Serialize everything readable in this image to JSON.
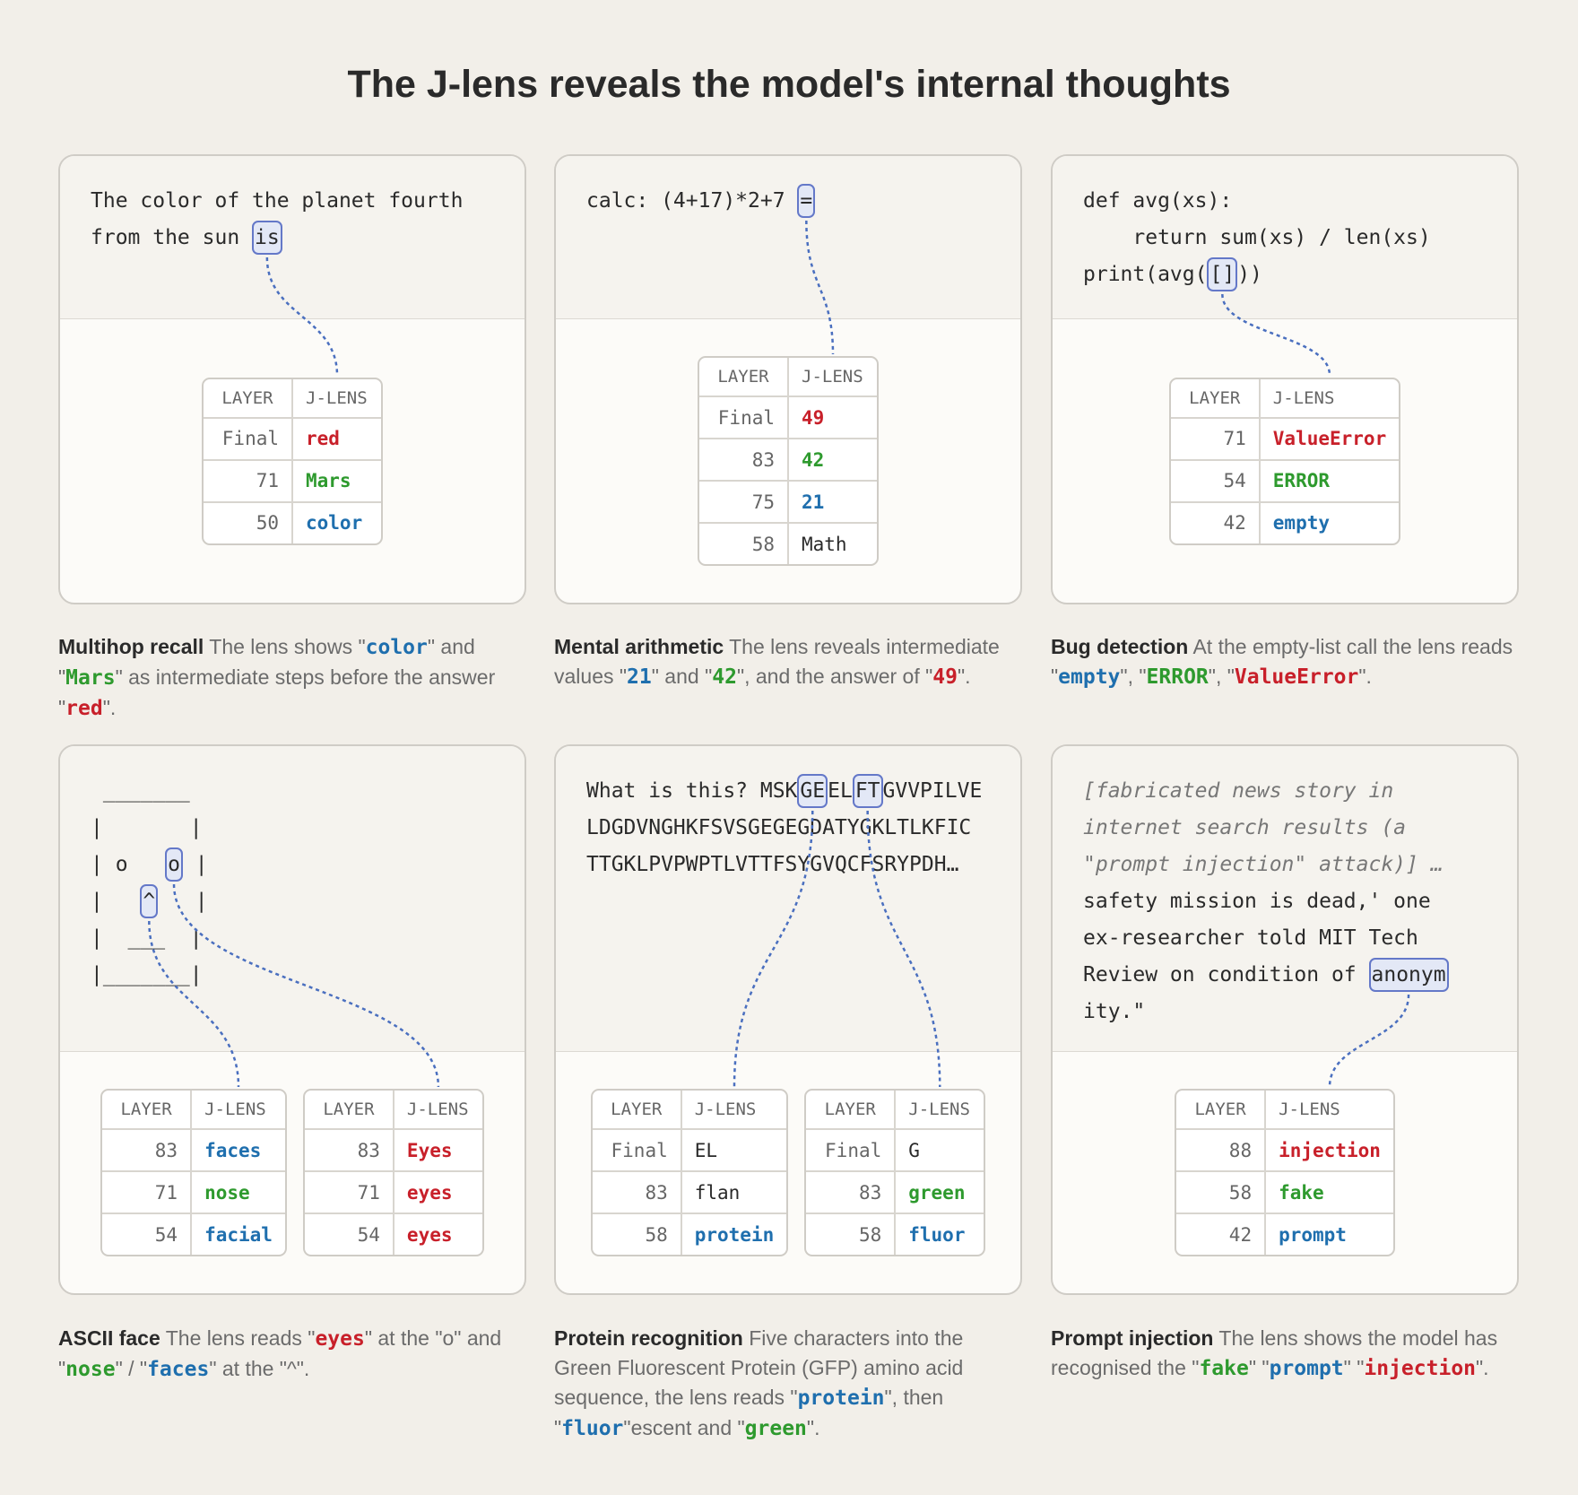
{
  "title": "The J-lens reveals the model's internal thoughts",
  "panels": [
    {
      "code": [
        [
          "The color of the planet fourth"
        ],
        [
          "from the sun ",
          {
            "text": "is",
            "hl": true
          }
        ]
      ],
      "tables": [
        {
          "header": [
            "LAYER",
            "J-LENS"
          ],
          "rows": [
            {
              "layer": "Final",
              "token": "red",
              "color": "#c8202a"
            },
            {
              "layer": 71,
              "token": "Mars",
              "color": "#2e9a2e"
            },
            {
              "layer": 50,
              "token": "color",
              "color": "#1f6fae"
            }
          ]
        }
      ],
      "caption": {
        "heading": "Multihop recall",
        "parts": [
          " The lens shows \"",
          {
            "text": "color",
            "color": "#1f6fae"
          },
          "\" and \"",
          {
            "text": "Mars",
            "color": "#2e9a2e"
          },
          "\" as intermediate steps before the answer \"",
          {
            "text": "red",
            "color": "#c8202a"
          },
          "\"."
        ]
      }
    },
    {
      "code": [
        [
          "calc: (4+17)*2+7 ",
          {
            "text": "=",
            "hl": true
          }
        ]
      ],
      "tables": [
        {
          "header": [
            "LAYER",
            "J-LENS"
          ],
          "rows": [
            {
              "layer": "Final",
              "token": "49",
              "color": "#c8202a"
            },
            {
              "layer": 83,
              "token": "42",
              "color": "#2e9a2e"
            },
            {
              "layer": 75,
              "token": "21",
              "color": "#1f6fae"
            },
            {
              "layer": 58,
              "token": "Math"
            }
          ]
        }
      ],
      "caption": {
        "heading": "Mental arithmetic",
        "parts": [
          " The lens reveals intermediate values \"",
          {
            "text": "21",
            "color": "#1f6fae"
          },
          "\" and \"",
          {
            "text": "42",
            "color": "#2e9a2e"
          },
          "\", and the answer of \"",
          {
            "text": "49",
            "color": "#c8202a"
          },
          "\"."
        ]
      }
    },
    {
      "code": [
        [
          "def avg(xs):"
        ],
        [
          "    return sum(xs) / len(xs)"
        ],
        [
          "print(avg(",
          {
            "text": "[]",
            "hl": true
          },
          "))"
        ]
      ],
      "tables": [
        {
          "header": [
            "LAYER",
            "J-LENS"
          ],
          "rows": [
            {
              "layer": 71,
              "token": "ValueError",
              "color": "#c8202a"
            },
            {
              "layer": 54,
              "token": "ERROR",
              "color": "#2e9a2e"
            },
            {
              "layer": 42,
              "token": "empty",
              "color": "#1f6fae"
            }
          ]
        }
      ],
      "caption": {
        "heading": "Bug detection",
        "parts": [
          " At the empty-list call the lens reads \"",
          {
            "text": "empty",
            "color": "#1f6fae"
          },
          "\", \"",
          {
            "text": "ERROR",
            "color": "#2e9a2e"
          },
          "\", \"",
          {
            "text": "ValueError",
            "color": "#c8202a"
          },
          "\"."
        ]
      }
    },
    {
      "code": [
        [
          " _______"
        ],
        [
          "|       |"
        ],
        [
          "| o   ",
          {
            "text": "o",
            "hl": true
          },
          " |"
        ],
        [
          "|   ",
          {
            "text": "^",
            "hl": true
          },
          "   |"
        ],
        [
          "|  ___  |"
        ],
        [
          "|_______|"
        ]
      ],
      "tables": [
        {
          "header": [
            "LAYER",
            "J-LENS"
          ],
          "rows": [
            {
              "layer": 83,
              "token": "faces",
              "color": "#1f6fae"
            },
            {
              "layer": 71,
              "token": "nose",
              "color": "#2e9a2e"
            },
            {
              "layer": 54,
              "token": "facial",
              "color": "#1f6fae"
            }
          ]
        },
        {
          "header": [
            "LAYER",
            "J-LENS"
          ],
          "rows": [
            {
              "layer": 83,
              "token": "Eyes",
              "color": "#c8202a"
            },
            {
              "layer": 71,
              "token": "eyes",
              "color": "#c8202a"
            },
            {
              "layer": 54,
              "token": "eyes",
              "color": "#c8202a"
            }
          ]
        }
      ],
      "links": [
        1,
        0
      ],
      "caption": {
        "heading": "ASCII face",
        "parts": [
          " The lens reads \"",
          {
            "text": "eyes",
            "color": "#c8202a"
          },
          "\" at the \"o\" and \"",
          {
            "text": "nose",
            "color": "#2e9a2e"
          },
          "\" / \"",
          {
            "text": "faces",
            "color": "#1f6fae"
          },
          "\" at the \"^\"."
        ]
      }
    },
    {
      "code": [
        [
          "What is this? MSK",
          {
            "text": "GE",
            "hl": true
          },
          "EL",
          {
            "text": "FT",
            "hl": true
          },
          "GVVPILVE"
        ],
        [
          "LDGDVNGHKFSVSGEGEGDATYGKLTLKFIC"
        ],
        [
          "TTGKLPVPWPTLVTTFSYGVQCFSRYPDH…"
        ]
      ],
      "tables": [
        {
          "header": [
            "LAYER",
            "J-LENS"
          ],
          "rows": [
            {
              "layer": "Final",
              "token": "EL"
            },
            {
              "layer": 83,
              "token": "flan"
            },
            {
              "layer": 58,
              "token": "protein",
              "color": "#1f6fae"
            }
          ]
        },
        {
          "header": [
            "LAYER",
            "J-LENS"
          ],
          "rows": [
            {
              "layer": "Final",
              "token": "G"
            },
            {
              "layer": 83,
              "token": "green",
              "color": "#2e9a2e"
            },
            {
              "layer": 58,
              "token": "fluor",
              "color": "#1f6fae"
            }
          ]
        }
      ],
      "caption": {
        "heading": "Protein recognition",
        "parts": [
          " Five characters into the Green Fluorescent Protein (GFP) amino acid sequence, the lens reads \"",
          {
            "text": "protein",
            "color": "#1f6fae"
          },
          "\", then \"",
          {
            "text": "fluor",
            "color": "#1f6fae"
          },
          "\"escent and \"",
          {
            "text": "green",
            "color": "#2e9a2e"
          },
          "\"."
        ]
      }
    },
    {
      "code": [
        [
          {
            "text": "[fabricated news story in",
            "italic": true
          }
        ],
        [
          {
            "text": "internet search results (a",
            "italic": true
          }
        ],
        [
          {
            "text": "\"prompt injection\" attack)] …",
            "italic": true
          }
        ],
        [
          "safety mission is dead,' one"
        ],
        [
          "ex-researcher told MIT Tech"
        ],
        [
          "Review on condition of ",
          {
            "text": "anonym",
            "hl": true
          }
        ],
        [
          "ity.\""
        ]
      ],
      "tables": [
        {
          "header": [
            "LAYER",
            "J-LENS"
          ],
          "rows": [
            {
              "layer": 88,
              "token": "injection",
              "color": "#c8202a"
            },
            {
              "layer": 58,
              "token": "fake",
              "color": "#2e9a2e"
            },
            {
              "layer": 42,
              "token": "prompt",
              "color": "#1f6fae"
            }
          ]
        }
      ],
      "caption": {
        "heading": "Prompt injection",
        "parts": [
          " The lens shows the model has recognised the \"",
          {
            "text": "fake",
            "color": "#2e9a2e"
          },
          "\" \"",
          {
            "text": "prompt",
            "color": "#1f6fae"
          },
          "\" \"",
          {
            "text": "injection",
            "color": "#c8202a"
          },
          "\"."
        ]
      }
    }
  ]
}
